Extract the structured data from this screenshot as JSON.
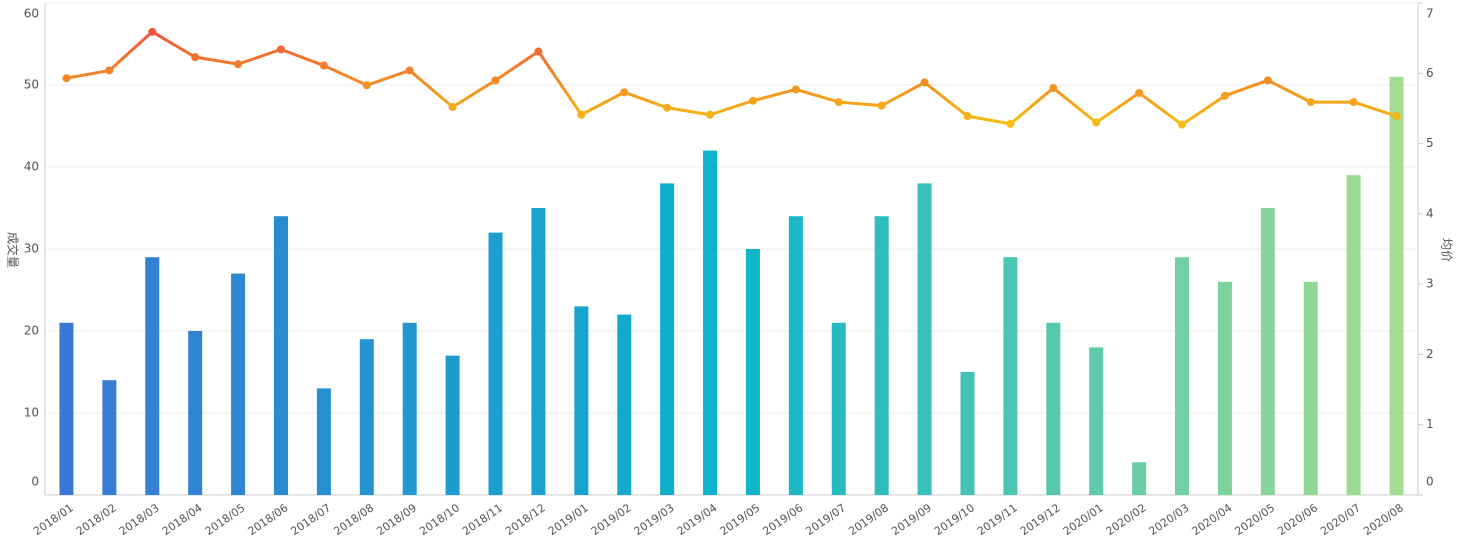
{
  "chart_data": {
    "type": "bar",
    "y_label": "成交量",
    "y2_label": "均价",
    "categories": [
      "2018/01",
      "2018/02",
      "2018/03",
      "2018/04",
      "2018/05",
      "2018/06",
      "2018/07",
      "2018/08",
      "2018/09",
      "2018/10",
      "2018/11",
      "2018/12",
      "2019/01",
      "2019/02",
      "2019/03",
      "2019/04",
      "2019/05",
      "2019/06",
      "2019/07",
      "2019/08",
      "2019/09",
      "2019/10",
      "2019/11",
      "2019/12",
      "2020/01",
      "2020/02",
      "2020/03",
      "2020/04",
      "2020/05",
      "2020/06",
      "2020/07",
      "2020/08"
    ],
    "series": [
      {
        "type": "bar",
        "gradient": [
          "#3a78d6",
          "#0cb4cb",
          "#a4dd8f"
        ],
        "values": [
          21,
          14,
          29,
          20,
          27,
          34,
          13,
          19,
          21,
          17,
          32,
          35,
          23,
          22,
          38,
          42,
          30,
          34,
          21,
          34,
          38,
          15,
          29,
          21,
          18,
          4,
          29,
          26,
          35,
          26,
          39,
          51
        ]
      },
      {
        "type": "line",
        "axis": "y2",
        "gradient": [
          "#f0553c",
          "#f7bd10"
        ],
        "values": [
          5.93,
          6.04,
          6.59,
          6.23,
          6.13,
          6.34,
          6.11,
          5.83,
          6.04,
          5.52,
          5.9,
          6.31,
          5.41,
          5.73,
          5.51,
          5.41,
          5.61,
          5.77,
          5.59,
          5.54,
          5.87,
          5.39,
          5.28,
          5.79,
          5.3,
          5.72,
          5.27,
          5.68,
          5.9,
          5.59,
          5.59,
          5.39
        ]
      }
    ],
    "ylim": [
      0,
      60
    ],
    "yticks": [
      0,
      10,
      20,
      30,
      40,
      50,
      60
    ],
    "y2lim": [
      0,
      7
    ],
    "y2ticks": [
      0,
      1,
      2,
      3,
      4,
      5,
      6,
      7
    ],
    "grid": true
  }
}
